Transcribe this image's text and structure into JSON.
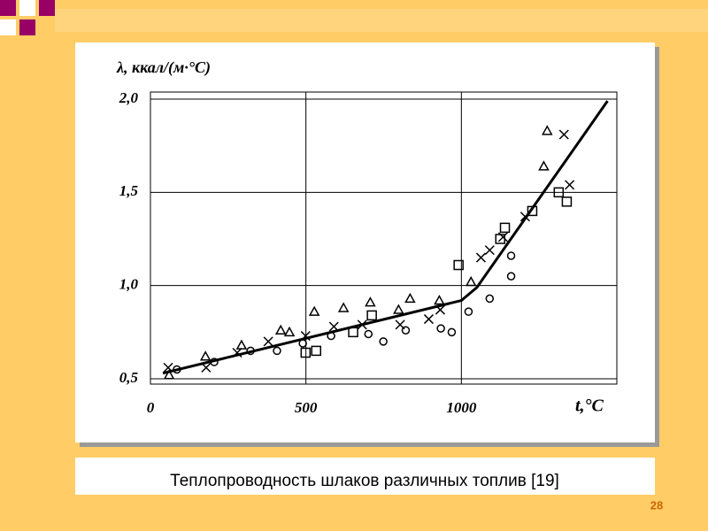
{
  "chart_data": {
    "type": "scatter",
    "ylabel": "λ, ккал/(м·°С)",
    "xlabel": "t,°C",
    "xlim": [
      0,
      1500
    ],
    "ylim": [
      0.5,
      2.0
    ],
    "xticks": [
      0,
      500,
      1000
    ],
    "yticks": [
      {
        "value": 0.5,
        "label": "0,5"
      },
      {
        "value": 1.0,
        "label": "1,0"
      },
      {
        "value": 1.5,
        "label": "1,5"
      },
      {
        "value": 2.0,
        "label": "2,0"
      }
    ],
    "grid": true,
    "series": [
      {
        "marker": "triangle",
        "color": "#000000",
        "x": [
          60,
          177,
          293,
          419,
          447,
          527,
          621,
          707,
          798,
          835,
          929,
          1031,
          1265,
          1276
        ],
        "y": [
          0.52,
          0.62,
          0.68,
          0.76,
          0.75,
          0.86,
          0.88,
          0.91,
          0.87,
          0.93,
          0.92,
          1.02,
          1.64,
          1.83
        ]
      },
      {
        "marker": "cross",
        "color": "#000000",
        "x": [
          57,
          179,
          279,
          379,
          499,
          590,
          681,
          803,
          895,
          932,
          1063,
          1091,
          1134,
          1205,
          1330,
          1348
        ],
        "y": [
          0.56,
          0.56,
          0.64,
          0.7,
          0.73,
          0.78,
          0.79,
          0.79,
          0.82,
          0.87,
          1.15,
          1.19,
          1.26,
          1.37,
          1.81,
          1.54
        ]
      },
      {
        "marker": "square",
        "color": "#000000",
        "x": [
          499,
          533,
          652,
          712,
          991,
          1125,
          1140,
          1228,
          1313,
          1339
        ],
        "y": [
          0.64,
          0.65,
          0.75,
          0.84,
          1.11,
          1.25,
          1.31,
          1.4,
          1.5,
          1.45
        ]
      },
      {
        "marker": "circle",
        "color": "#000000",
        "x": [
          85,
          205,
          322,
          407,
          490,
          581,
          701,
          749,
          821,
          934,
          969,
          1023,
          1091,
          1160,
          1160
        ],
        "y": [
          0.55,
          0.59,
          0.65,
          0.65,
          0.69,
          0.73,
          0.74,
          0.7,
          0.76,
          0.77,
          0.75,
          0.86,
          0.93,
          1.16,
          1.05
        ]
      },
      {
        "type": "line",
        "color": "#000000",
        "x": [
          40,
          1000,
          1050,
          1470
        ],
        "y": [
          0.53,
          0.92,
          0.99,
          1.99
        ]
      }
    ]
  },
  "caption": "Теплопроводность шлаков различных топлив [19]",
  "slide_number": "28"
}
